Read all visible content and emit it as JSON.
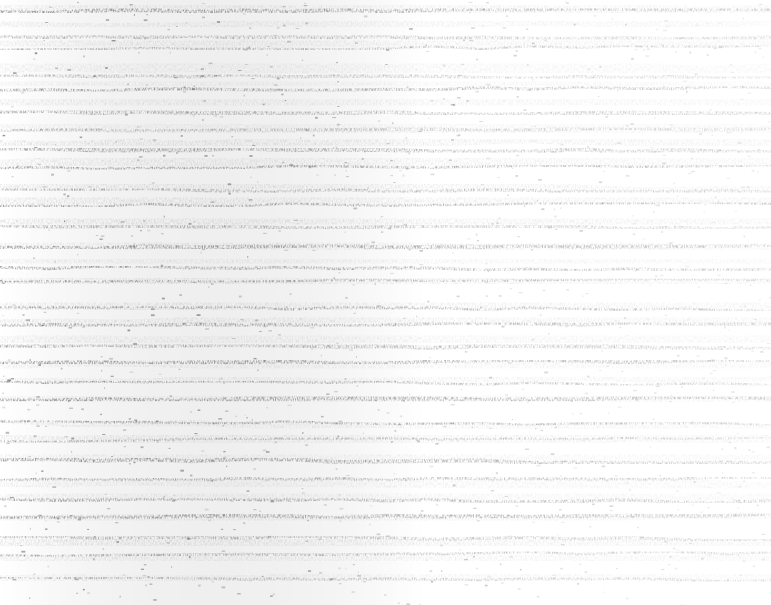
{
  "image": {
    "subject": "grayscale-texture",
    "palette": {
      "background": "#ffffff",
      "band_light": "#d9d9d9",
      "band_dark": "#6e6e6e",
      "grain": "#4a4a4a"
    },
    "band_count": 30
  }
}
